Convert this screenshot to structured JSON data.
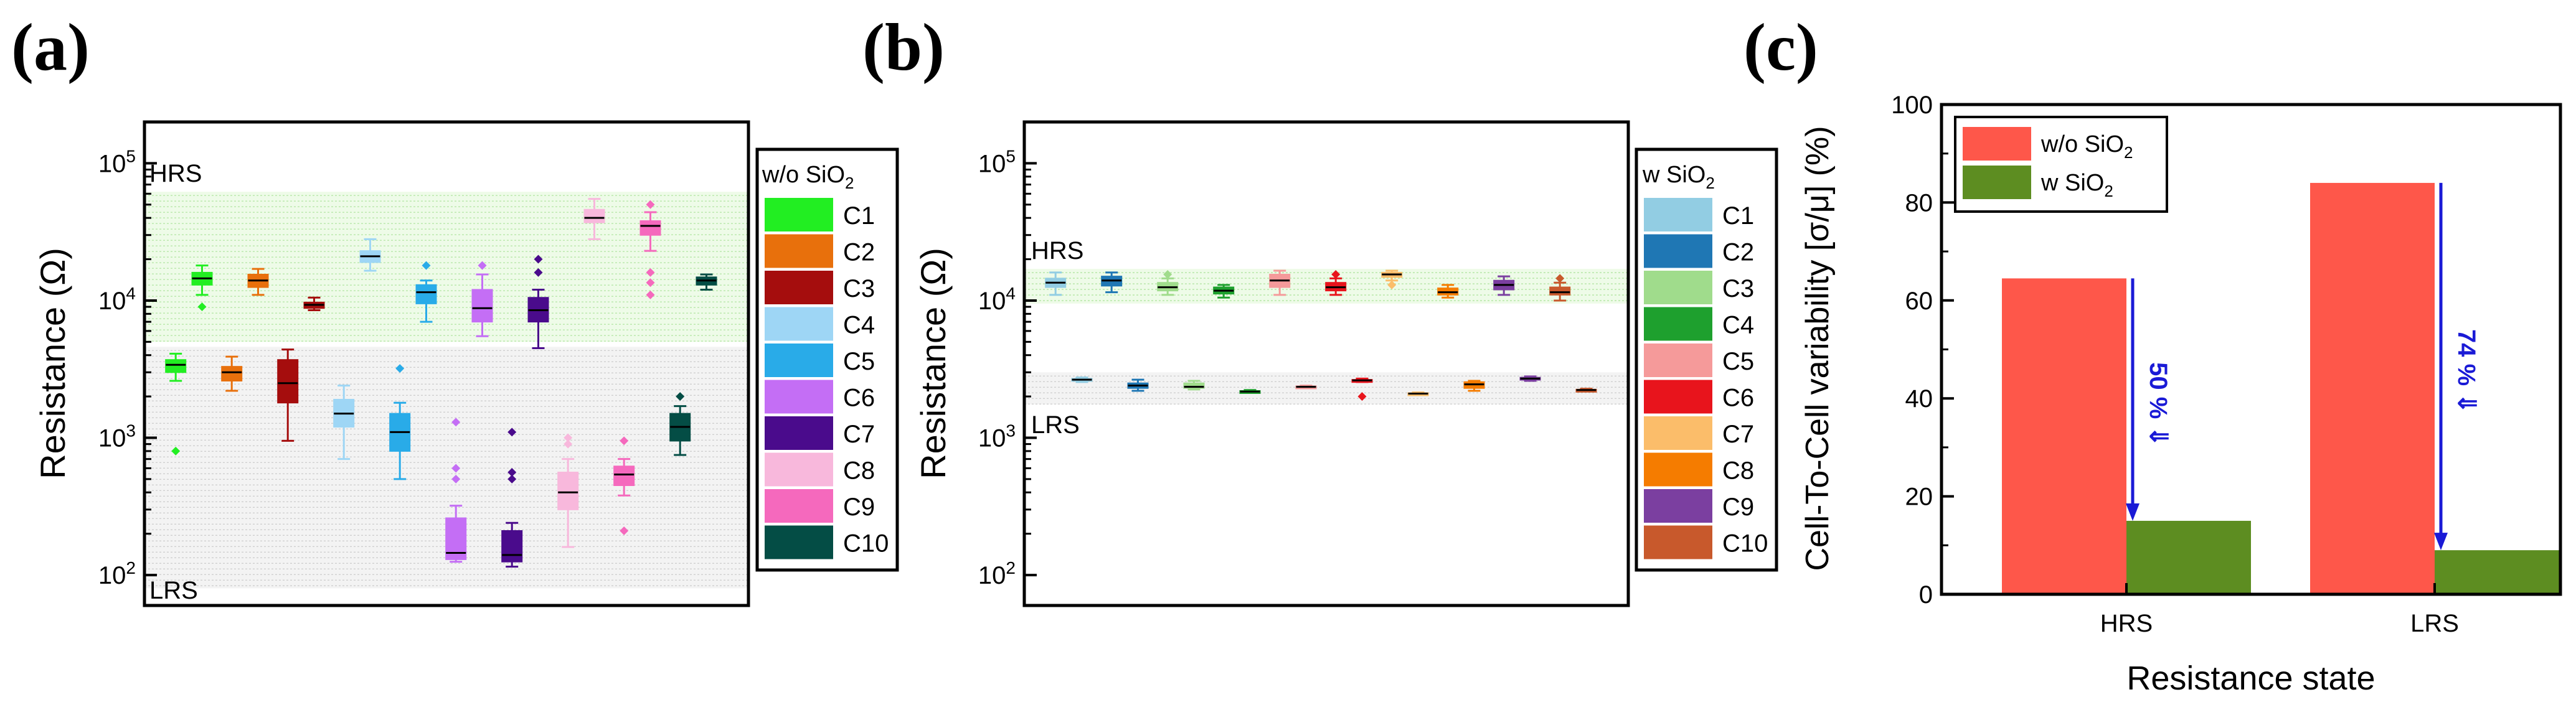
{
  "panels": {
    "a": {
      "letter": "(a)"
    },
    "b": {
      "letter": "(b)"
    },
    "c": {
      "letter": "(c)"
    }
  },
  "chart_data": [
    {
      "id": "a",
      "type": "box",
      "ylabel": "Resistance (Ω)",
      "yscale": "log",
      "ylim": [
        60,
        200000
      ],
      "yticks": [
        {
          "v": 100,
          "exp": "2"
        },
        {
          "v": 1000,
          "exp": "3"
        },
        {
          "v": 10000,
          "exp": "4"
        },
        {
          "v": 100000,
          "exp": "5"
        }
      ],
      "tick_base": "10",
      "band_labels": {
        "hrs": "HRS",
        "lrs": "LRS"
      },
      "hrs_band": [
        5000,
        62000
      ],
      "lrs_band": [
        80,
        4600
      ],
      "legend_title": "w/o SiO",
      "legend_title_sub": "2",
      "legend": [
        {
          "name": "C1",
          "color": "#22ee22"
        },
        {
          "name": "C2",
          "color": "#e8700c"
        },
        {
          "name": "C3",
          "color": "#a50d0d"
        },
        {
          "name": "C4",
          "color": "#9ed6f5"
        },
        {
          "name": "C5",
          "color": "#29abe8"
        },
        {
          "name": "C6",
          "color": "#c46ef5"
        },
        {
          "name": "C7",
          "color": "#4a0b8c"
        },
        {
          "name": "C8",
          "color": "#f8b8dc"
        },
        {
          "name": "C9",
          "color": "#f569bd"
        },
        {
          "name": "C10",
          "color": "#044d45"
        }
      ],
      "boxes": [
        {
          "cell": "C1",
          "state": "LRS",
          "min": 2600,
          "q1": 3000,
          "med": 3400,
          "q3": 3700,
          "max": 4100,
          "out": [
            800
          ]
        },
        {
          "cell": "C1",
          "state": "HRS",
          "min": 11000,
          "q1": 13000,
          "med": 14500,
          "q3": 16000,
          "max": 18000,
          "out": [
            9000
          ]
        },
        {
          "cell": "C2",
          "state": "LRS",
          "min": 2200,
          "q1": 2600,
          "med": 3000,
          "q3": 3300,
          "max": 3900,
          "out": []
        },
        {
          "cell": "C2",
          "state": "HRS",
          "min": 11000,
          "q1": 12500,
          "med": 14000,
          "q3": 15500,
          "max": 17000,
          "out": []
        },
        {
          "cell": "C3",
          "state": "LRS",
          "min": 950,
          "q1": 1800,
          "med": 2500,
          "q3": 3700,
          "max": 4400,
          "out": []
        },
        {
          "cell": "C3",
          "state": "HRS",
          "min": 8500,
          "q1": 8800,
          "med": 9300,
          "q3": 9700,
          "max": 10500,
          "out": []
        },
        {
          "cell": "C4",
          "state": "LRS",
          "min": 700,
          "q1": 1200,
          "med": 1500,
          "q3": 1900,
          "max": 2400,
          "out": []
        },
        {
          "cell": "C4",
          "state": "HRS",
          "min": 16500,
          "q1": 19000,
          "med": 21000,
          "q3": 23000,
          "max": 28000,
          "out": []
        },
        {
          "cell": "C5",
          "state": "LRS",
          "min": 500,
          "q1": 800,
          "med": 1100,
          "q3": 1500,
          "max": 1800,
          "out": [
            3200
          ]
        },
        {
          "cell": "C5",
          "state": "HRS",
          "min": 7000,
          "q1": 9500,
          "med": 11500,
          "q3": 13000,
          "max": 14000,
          "out": [
            18000
          ]
        },
        {
          "cell": "C6",
          "state": "LRS",
          "min": 125,
          "q1": 130,
          "med": 145,
          "q3": 260,
          "max": 320,
          "out": [
            500,
            600,
            1300
          ]
        },
        {
          "cell": "C6",
          "state": "HRS",
          "min": 5500,
          "q1": 7000,
          "med": 8800,
          "q3": 12000,
          "max": 15500,
          "out": [
            18000
          ]
        },
        {
          "cell": "C7",
          "state": "LRS",
          "min": 115,
          "q1": 125,
          "med": 140,
          "q3": 210,
          "max": 240,
          "out": [
            500,
            560,
            1100
          ]
        },
        {
          "cell": "C7",
          "state": "HRS",
          "min": 4500,
          "q1": 7000,
          "med": 8500,
          "q3": 10500,
          "max": 12000,
          "out": [
            16000,
            20000
          ]
        },
        {
          "cell": "C8",
          "state": "LRS",
          "min": 160,
          "q1": 300,
          "med": 400,
          "q3": 560,
          "max": 700,
          "out": [
            900,
            1000
          ]
        },
        {
          "cell": "C8",
          "state": "HRS",
          "min": 28000,
          "q1": 37000,
          "med": 40000,
          "q3": 46000,
          "max": 55000,
          "out": []
        },
        {
          "cell": "C9",
          "state": "LRS",
          "min": 380,
          "q1": 450,
          "med": 540,
          "q3": 620,
          "max": 700,
          "out": [
            210,
            950
          ]
        },
        {
          "cell": "C9",
          "state": "HRS",
          "min": 23000,
          "q1": 30000,
          "med": 35000,
          "q3": 38000,
          "max": 44000,
          "out": [
            11000,
            13500,
            16000,
            50000
          ]
        },
        {
          "cell": "C10",
          "state": "LRS",
          "min": 750,
          "q1": 950,
          "med": 1200,
          "q3": 1500,
          "max": 1700,
          "out": [
            2000
          ]
        },
        {
          "cell": "C10",
          "state": "HRS",
          "min": 12000,
          "q1": 13000,
          "med": 14000,
          "q3": 14800,
          "max": 15500,
          "out": []
        }
      ]
    },
    {
      "id": "b",
      "type": "box",
      "ylabel": "Resistance (Ω)",
      "yscale": "log",
      "ylim": [
        60,
        200000
      ],
      "yticks": [
        {
          "v": 100,
          "exp": "2"
        },
        {
          "v": 1000,
          "exp": "3"
        },
        {
          "v": 10000,
          "exp": "4"
        },
        {
          "v": 100000,
          "exp": "5"
        }
      ],
      "tick_base": "10",
      "band_labels": {
        "hrs": "HRS",
        "lrs": "LRS"
      },
      "hrs_band": [
        9500,
        17000
      ],
      "lrs_band": [
        1750,
        3000
      ],
      "legend_title": "w SiO",
      "legend_title_sub": "2",
      "legend": [
        {
          "name": "C1",
          "color": "#92cde3"
        },
        {
          "name": "C2",
          "color": "#1f77b4"
        },
        {
          "name": "C3",
          "color": "#a0dc8c"
        },
        {
          "name": "C4",
          "color": "#1ea02e"
        },
        {
          "name": "C5",
          "color": "#f59a9a"
        },
        {
          "name": "C6",
          "color": "#e8141c"
        },
        {
          "name": "C7",
          "color": "#fbbd6a"
        },
        {
          "name": "C8",
          "color": "#f57c00"
        },
        {
          "name": "C9",
          "color": "#7b3fa0"
        },
        {
          "name": "C10",
          "color": "#c8592c"
        }
      ],
      "boxes": [
        {
          "cell": "C1",
          "state": "HRS",
          "min": 11000,
          "q1": 12500,
          "med": 13500,
          "q3": 14500,
          "max": 16000,
          "out": []
        },
        {
          "cell": "C1",
          "state": "LRS",
          "min": 2550,
          "q1": 2600,
          "med": 2650,
          "q3": 2700,
          "max": 2750,
          "out": []
        },
        {
          "cell": "C2",
          "state": "HRS",
          "min": 11500,
          "q1": 12800,
          "med": 14000,
          "q3": 15000,
          "max": 16000,
          "out": []
        },
        {
          "cell": "C2",
          "state": "LRS",
          "min": 2200,
          "q1": 2300,
          "med": 2400,
          "q3": 2500,
          "max": 2650,
          "out": []
        },
        {
          "cell": "C3",
          "state": "HRS",
          "min": 11000,
          "q1": 11800,
          "med": 12500,
          "q3": 13500,
          "max": 14500,
          "out": [
            15500
          ]
        },
        {
          "cell": "C3",
          "state": "LRS",
          "min": 2250,
          "q1": 2300,
          "med": 2350,
          "q3": 2500,
          "max": 2600,
          "out": []
        },
        {
          "cell": "C4",
          "state": "HRS",
          "min": 10500,
          "q1": 11200,
          "med": 11800,
          "q3": 12500,
          "max": 13000,
          "out": []
        },
        {
          "cell": "C4",
          "state": "LRS",
          "min": 2120,
          "q1": 2150,
          "med": 2170,
          "q3": 2200,
          "max": 2230,
          "out": []
        },
        {
          "cell": "C5",
          "state": "HRS",
          "min": 11000,
          "q1": 12500,
          "med": 14000,
          "q3": 15500,
          "max": 16500,
          "out": []
        },
        {
          "cell": "C5",
          "state": "LRS",
          "min": 2300,
          "q1": 2320,
          "med": 2350,
          "q3": 2380,
          "max": 2400,
          "out": []
        },
        {
          "cell": "C6",
          "state": "HRS",
          "min": 11000,
          "q1": 11800,
          "med": 12500,
          "q3": 13500,
          "max": 14500,
          "out": [
            15500
          ]
        },
        {
          "cell": "C6",
          "state": "LRS",
          "min": 2550,
          "q1": 2600,
          "med": 2620,
          "q3": 2650,
          "max": 2700,
          "out": [
            2000
          ]
        },
        {
          "cell": "C7",
          "state": "HRS",
          "min": 14000,
          "q1": 14800,
          "med": 15500,
          "q3": 16000,
          "max": 16500,
          "out": [
            13000
          ]
        },
        {
          "cell": "C7",
          "state": "LRS",
          "min": 2070,
          "q1": 2090,
          "med": 2100,
          "q3": 2120,
          "max": 2140,
          "out": []
        },
        {
          "cell": "C8",
          "state": "HRS",
          "min": 10500,
          "q1": 11000,
          "med": 11500,
          "q3": 12300,
          "max": 13000,
          "out": []
        },
        {
          "cell": "C8",
          "state": "LRS",
          "min": 2200,
          "q1": 2300,
          "med": 2450,
          "q3": 2550,
          "max": 2600,
          "out": []
        },
        {
          "cell": "C9",
          "state": "HRS",
          "min": 11000,
          "q1": 12000,
          "med": 13000,
          "q3": 14000,
          "max": 15000,
          "out": []
        },
        {
          "cell": "C9",
          "state": "LRS",
          "min": 2600,
          "q1": 2650,
          "med": 2700,
          "q3": 2750,
          "max": 2800,
          "out": []
        },
        {
          "cell": "C10",
          "state": "HRS",
          "min": 10000,
          "q1": 11000,
          "med": 11500,
          "q3": 12500,
          "max": 13500,
          "out": [
            14500
          ]
        },
        {
          "cell": "C10",
          "state": "LRS",
          "min": 2180,
          "q1": 2200,
          "med": 2230,
          "q3": 2250,
          "max": 2280,
          "out": []
        }
      ]
    },
    {
      "id": "c",
      "type": "bar",
      "categories": [
        "HRS",
        "LRS"
      ],
      "series": [
        {
          "name": "w/o SiO",
          "name_sub": "2",
          "color": "#fe574a",
          "values": [
            64.5,
            84
          ]
        },
        {
          "name": "w SiO",
          "name_sub": "2",
          "color": "#5d8d21",
          "values": [
            15,
            9
          ]
        }
      ],
      "ylabel": "Cell-To-Cell variability [σ/μ] (%)",
      "xlabel": "Resistance state",
      "ylim": [
        0,
        100
      ],
      "yticks": [
        0,
        20,
        40,
        60,
        80,
        100
      ],
      "annotations": [
        {
          "category": "HRS",
          "text": "50 % ⇓",
          "from": 64.5,
          "to": 15
        },
        {
          "category": "LRS",
          "text": "74 % ⇓",
          "from": 84,
          "to": 9
        }
      ],
      "arrow_color": "#1a1ad6"
    }
  ]
}
